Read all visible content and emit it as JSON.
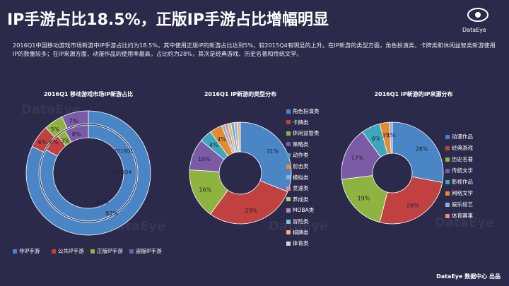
{
  "header": {
    "title": "IP手游占比18.5%，正版IP手游占比增幅明显",
    "logo_text": "DataEye",
    "description": "2016Q1中国移动游戏市场新游中IP手游占比约为18.5%，其中使用正版IP的新游占比达到5%，较2015Q4有明显的上升。在IP新游的类型方面，角色扮演类、卡牌类和休闲益智类新游使用IP的数量较多；在IP来源方面，动漫作品的使用率最高，占比约为28%，其次是经典游戏、历史名著和传统文学。"
  },
  "footer": {
    "text": "DataEye 数据中心 出品"
  },
  "watermark": "DataEye",
  "colors": {
    "blue": "#4a86c5",
    "red": "#c0413f",
    "green": "#8fb33f",
    "purple": "#7b5aa6",
    "teal": "#3ea7bd",
    "orange": "#e48a2f",
    "lightblue": "#8eaee0",
    "pink": "#e08e8c",
    "background": "#2b2a4a"
  },
  "chart_data": [
    {
      "type": "donut",
      "title": "2016Q1 移动游戏市场IP新游占比",
      "rings": [
        {
          "name": "2016Q1",
          "values": [
            82,
            6,
            5,
            7
          ],
          "labels": [
            "82%",
            "6%",
            "5%",
            "7%"
          ]
        },
        {
          "name": "2015Q4",
          "values": [
            83,
            6,
            3,
            8
          ],
          "labels": [
            "83%",
            "6%",
            "3%",
            "8%"
          ]
        }
      ],
      "ring_labels": [
        "2016Q1",
        "2015Q4"
      ],
      "categories": [
        "非IP手游",
        "公共IP手游",
        "正版IP手游",
        "盗版IP手游"
      ],
      "legend_position": "bottom"
    },
    {
      "type": "donut",
      "title": "2016Q1 IP新游的类型分布",
      "categories": [
        "角色扮演类",
        "卡牌类",
        "休闲益智类",
        "策略类",
        "动作类",
        "射击类",
        "模拟类",
        "竞速类",
        "养成类",
        "MOBA类",
        "冒险类",
        "棋牌类",
        "体育类"
      ],
      "values": [
        31,
        29,
        16,
        10,
        4,
        4,
        1,
        1,
        1,
        1,
        1,
        1,
        0
      ],
      "labels": [
        "31%",
        "29%",
        "16%",
        "10%",
        "4%",
        "4%"
      ],
      "legend_position": "right"
    },
    {
      "type": "donut",
      "title": "2016Q1 IP新游的IP来源分布",
      "categories": [
        "动漫作品",
        "经典游戏",
        "历史名著",
        "传统文学",
        "影视作品",
        "网络文学",
        "娱乐综艺",
        "体育赛事"
      ],
      "values": [
        28,
        26,
        19,
        17,
        6,
        3,
        1,
        0
      ],
      "labels": [
        "28%",
        "26%",
        "19%",
        "17%",
        "6%",
        "3%",
        "1%"
      ],
      "legend_position": "right"
    }
  ]
}
